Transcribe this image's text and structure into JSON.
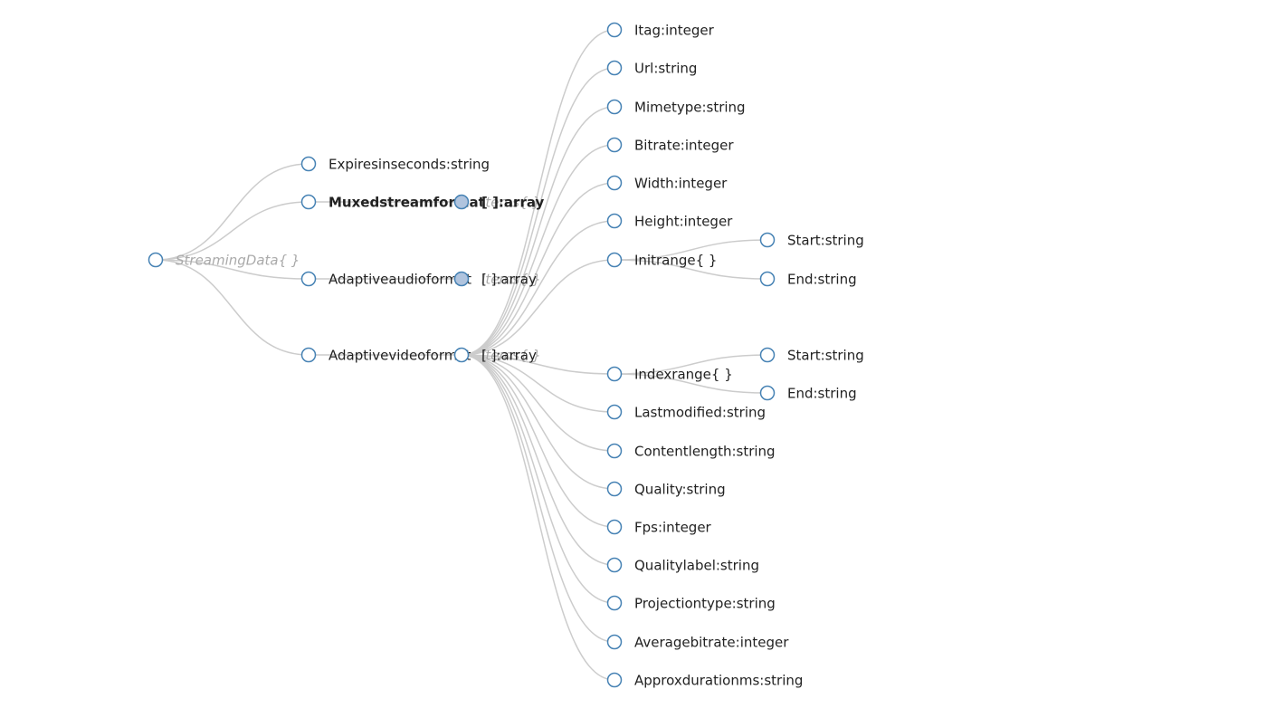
{
  "colors": {
    "link": "#cccccc",
    "node_stroke": "#4682b4",
    "node_fill": "#ffffff",
    "collapsed_fill": "#b0c4de",
    "active_stroke": "#2ecc40",
    "label": "#222222",
    "ghost_label": "#aaaaaa"
  },
  "tree": {
    "root": {
      "id": "root",
      "label": "StreamingData{ }"
    },
    "nodes": [
      {
        "id": "expires",
        "parent": "root",
        "label": "Expiresinseconds:string"
      },
      {
        "id": "muxed",
        "parent": "root",
        "label": "Muxedstreamformat",
        "active": true
      },
      {
        "id": "audio",
        "parent": "root",
        "label": "Adaptiveaudioformat"
      },
      {
        "id": "video",
        "parent": "root",
        "label": "Adaptivevideoformat"
      },
      {
        "id": "muxed_items",
        "parent": "muxed",
        "label": "[ ]:array",
        "ghost": "Items{ }",
        "collapsed": true,
        "bold": true
      },
      {
        "id": "audio_items",
        "parent": "audio",
        "label": "[ ]:array",
        "ghost": "Items{ }",
        "collapsed": true
      },
      {
        "id": "video_items",
        "parent": "video",
        "label": "[ ]:array",
        "ghost": "Items{ }"
      },
      {
        "id": "itag",
        "parent": "video_items",
        "label": "Itag:integer"
      },
      {
        "id": "url",
        "parent": "video_items",
        "label": "Url:string"
      },
      {
        "id": "mimetype",
        "parent": "video_items",
        "label": "Mimetype:string"
      },
      {
        "id": "bitrate",
        "parent": "video_items",
        "label": "Bitrate:integer"
      },
      {
        "id": "width",
        "parent": "video_items",
        "label": "Width:integer"
      },
      {
        "id": "height",
        "parent": "video_items",
        "label": "Height:integer"
      },
      {
        "id": "initrange",
        "parent": "video_items",
        "label": "Initrange{ }"
      },
      {
        "id": "init_start",
        "parent": "initrange",
        "label": "Start:string"
      },
      {
        "id": "init_end",
        "parent": "initrange",
        "label": "End:string"
      },
      {
        "id": "indexrange",
        "parent": "video_items",
        "label": "Indexrange{ }"
      },
      {
        "id": "index_start",
        "parent": "indexrange",
        "label": "Start:string"
      },
      {
        "id": "index_end",
        "parent": "indexrange",
        "label": "End:string"
      },
      {
        "id": "lastmodified",
        "parent": "video_items",
        "label": "Lastmodified:string"
      },
      {
        "id": "contentlength",
        "parent": "video_items",
        "label": "Contentlength:string"
      },
      {
        "id": "quality",
        "parent": "video_items",
        "label": "Quality:string"
      },
      {
        "id": "fps",
        "parent": "video_items",
        "label": "Fps:integer"
      },
      {
        "id": "qualitylabel",
        "parent": "video_items",
        "label": "Qualitylabel:string"
      },
      {
        "id": "projectiontype",
        "parent": "video_items",
        "label": "Projectiontype:string"
      },
      {
        "id": "averagebitrate",
        "parent": "video_items",
        "label": "Averagebitrate:integer"
      },
      {
        "id": "approxdurationms",
        "parent": "video_items",
        "label": "Approxdurationms:string"
      }
    ]
  }
}
